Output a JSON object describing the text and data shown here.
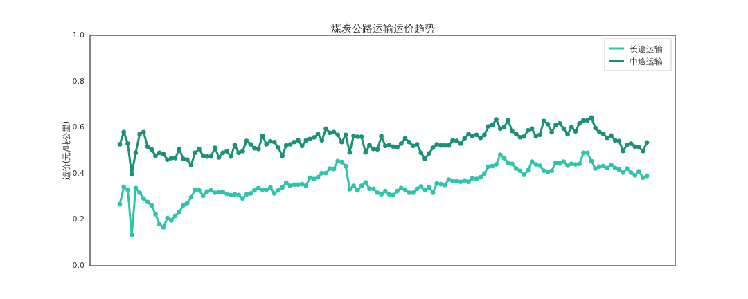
{
  "chart_data": {
    "type": "line",
    "title": "煤炭公路运输运价趋势",
    "ylabel": "运价(元/吨公里)",
    "categories": [
      null,
      null,
      null,
      null,
      null,
      null,
      null,
      null,
      null,
      null,
      null,
      null,
      null,
      null,
      null,
      null,
      null,
      null,
      null,
      null,
      null,
      null,
      null,
      null,
      null,
      null,
      null,
      null,
      null,
      null,
      null,
      null,
      null,
      null,
      null,
      null,
      null,
      null,
      null,
      null,
      null,
      null,
      null,
      null,
      null,
      null,
      null,
      null,
      null,
      null,
      null,
      null,
      null,
      null,
      null,
      null,
      null,
      null,
      null,
      null,
      null,
      null,
      null,
      null,
      null,
      null,
      null,
      null,
      null,
      null,
      null,
      null,
      null,
      null,
      null,
      null,
      null,
      null,
      null,
      null,
      null,
      null,
      null,
      null,
      null,
      null,
      null,
      null,
      null,
      null,
      null,
      null,
      null,
      null,
      null,
      null,
      null,
      null,
      null,
      null,
      null,
      null,
      null,
      null,
      null,
      null,
      null,
      null,
      null,
      null,
      null,
      null,
      null,
      null,
      null,
      null,
      null,
      null,
      null,
      null,
      null,
      null,
      null,
      null,
      null,
      null,
      null,
      null,
      null,
      null,
      null,
      null,
      null,
      null
    ],
    "series": [
      {
        "name": "长途运输",
        "color": "#2ec4a9",
        "values": [
          0.267,
          0.342,
          0.33,
          0.134,
          0.337,
          0.317,
          0.292,
          0.277,
          0.262,
          0.224,
          0.18,
          0.167,
          0.207,
          0.197,
          0.217,
          0.234,
          0.262,
          0.272,
          0.297,
          0.33,
          0.327,
          0.304,
          0.322,
          0.327,
          0.317,
          0.32,
          0.32,
          0.312,
          0.307,
          0.31,
          0.307,
          0.292,
          0.31,
          0.314,
          0.327,
          0.337,
          0.33,
          0.33,
          0.34,
          0.314,
          0.327,
          0.34,
          0.36,
          0.347,
          0.352,
          0.352,
          0.354,
          0.347,
          0.382,
          0.377,
          0.384,
          0.402,
          0.402,
          0.422,
          0.42,
          0.454,
          0.45,
          0.432,
          0.332,
          0.347,
          0.327,
          0.347,
          0.362,
          0.334,
          0.334,
          0.317,
          0.31,
          0.324,
          0.31,
          0.307,
          0.324,
          0.337,
          0.33,
          0.317,
          0.317,
          0.334,
          0.344,
          0.33,
          0.34,
          0.317,
          0.357,
          0.354,
          0.35,
          0.374,
          0.367,
          0.367,
          0.364,
          0.37,
          0.364,
          0.38,
          0.377,
          0.384,
          0.4,
          0.43,
          0.432,
          0.44,
          0.482,
          0.467,
          0.447,
          0.442,
          0.422,
          0.412,
          0.394,
          0.414,
          0.452,
          0.44,
          0.434,
          0.412,
          0.407,
          0.412,
          0.447,
          0.444,
          0.452,
          0.434,
          0.442,
          0.44,
          0.442,
          0.49,
          0.49,
          0.454,
          0.422,
          0.43,
          0.432,
          0.424,
          0.437,
          0.424,
          0.417,
          0.404,
          0.422,
          0.404,
          0.392,
          0.41,
          0.382,
          0.39
        ]
      },
      {
        "name": "中途运输",
        "color": "#1a9077",
        "values": [
          0.527,
          0.58,
          0.53,
          0.397,
          0.49,
          0.571,
          0.58,
          0.517,
          0.505,
          0.477,
          0.49,
          0.484,
          0.46,
          0.467,
          0.467,
          0.505,
          0.464,
          0.46,
          0.437,
          0.49,
          0.507,
          0.477,
          0.474,
          0.474,
          0.512,
          0.47,
          0.49,
          0.497,
          0.474,
          0.524,
          0.49,
          0.497,
          0.542,
          0.527,
          0.51,
          0.507,
          0.564,
          0.527,
          0.54,
          0.537,
          0.512,
          0.477,
          0.522,
          0.527,
          0.537,
          0.544,
          0.52,
          0.544,
          0.55,
          0.557,
          0.572,
          0.544,
          0.595,
          0.577,
          0.58,
          0.568,
          0.537,
          0.568,
          0.492,
          0.564,
          0.56,
          0.56,
          0.492,
          0.522,
          0.507,
          0.505,
          0.562,
          0.52,
          0.524,
          0.517,
          0.514,
          0.53,
          0.553,
          0.537,
          0.52,
          0.527,
          0.49,
          0.464,
          0.487,
          0.512,
          0.527,
          0.522,
          0.522,
          0.522,
          0.544,
          0.542,
          0.53,
          0.553,
          0.571,
          0.562,
          0.568,
          0.555,
          0.568,
          0.605,
          0.611,
          0.635,
          0.595,
          0.603,
          0.631,
          0.585,
          0.573,
          0.558,
          0.561,
          0.588,
          0.595,
          0.562,
          0.568,
          0.628,
          0.615,
          0.58,
          0.611,
          0.618,
          0.595,
          0.571,
          0.601,
          0.583,
          0.618,
          0.631,
          0.631,
          0.643,
          0.598,
          0.58,
          0.573,
          0.555,
          0.565,
          0.544,
          0.541,
          0.498,
          0.525,
          0.53,
          0.517,
          0.514,
          0.498,
          0.535
        ]
      }
    ],
    "ylim": [
      0,
      1
    ],
    "yticks": [
      {
        "value": 0,
        "label": "0.0"
      },
      {
        "value": 0.2,
        "label": "0.2"
      },
      {
        "value": 0.4,
        "label": "0.4"
      },
      {
        "value": 0.6,
        "label": "0.6"
      },
      {
        "value": 0.8,
        "label": "0.8"
      },
      {
        "value": 1,
        "label": "1.0"
      }
    ],
    "legend": "top right",
    "marker": "circle",
    "line_style": "solid",
    "grid": false
  }
}
